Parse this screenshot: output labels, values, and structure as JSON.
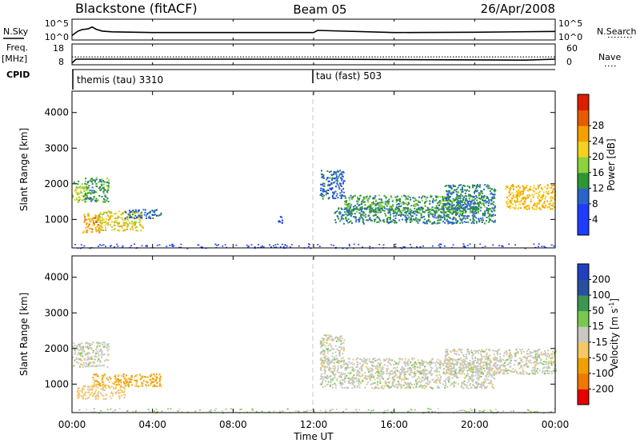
{
  "header": {
    "station": "Blackstone (fitACF)",
    "beam": "Beam 05",
    "date": "26/Apr/2008"
  },
  "params": {
    "nsky_label": "N.Sky",
    "nsky_ticks": [
      "10^5",
      "10^0"
    ],
    "nsearch_label": "N.Search",
    "nsearch_ticks": [
      "10^5",
      "10^0"
    ],
    "freq_label": "Freq.",
    "freq_unit": "[MHz]",
    "freq_ticks": [
      "18",
      "8"
    ],
    "nave_label": "Nave",
    "nave_ticks": [
      "60",
      "0"
    ],
    "cpid_label": "CPID"
  },
  "cpid": [
    {
      "name": "themis (tau) 3310",
      "start_hour": 0
    },
    {
      "name": "tau (fast) 503",
      "start_hour": 12
    }
  ],
  "axes": {
    "ylabel": "Slant Range [km]",
    "xlabel": "Time UT",
    "xticks": [
      "00:00",
      "04:00",
      "08:00",
      "12:00",
      "16:00",
      "20:00",
      "00:00"
    ]
  },
  "colors": {
    "power": [
      "#1e3cff",
      "#1e3cff",
      "#2a64c8",
      "#2e9632",
      "#8cd23c",
      "#f2d21e",
      "#f5a000",
      "#e65a00",
      "#dc1e00"
    ],
    "velocity": [
      "#e60000",
      "#f07800",
      "#f0a000",
      "#f5c864",
      "#c8c8c0",
      "#78c850",
      "#3c9650",
      "#2850a0",
      "#2040c0"
    ]
  },
  "chart_data": [
    {
      "type": "line",
      "title": "N.Sky / N.Search",
      "x_unit": "hours UT",
      "xlim": [
        0,
        24
      ],
      "series": [
        {
          "name": "N.Sky",
          "x": [
            0,
            0.3,
            0.5,
            0.8,
            1.0,
            1.2,
            1.5,
            2,
            4,
            8,
            12,
            12.2,
            16,
            20,
            24
          ],
          "values": [
            1,
            2.2,
            2.6,
            2.8,
            3.3,
            2.7,
            2.2,
            2.0,
            1.8,
            1.8,
            1.8,
            2.4,
            1.8,
            1.9,
            2.1
          ]
        }
      ]
    },
    {
      "type": "line",
      "title": "Freq. / Nave",
      "x_unit": "hours UT",
      "xlim": [
        0,
        24
      ],
      "series": [
        {
          "name": "Freq.",
          "x": [
            0,
            0.2,
            12,
            22.5,
            24
          ],
          "values": [
            8.5,
            10.5,
            10.5,
            10.0,
            10.5
          ]
        },
        {
          "name": "Nave",
          "x": [
            0,
            24
          ],
          "values": [
            22,
            22
          ]
        }
      ]
    },
    {
      "type": "heatmap",
      "title": "Power",
      "zlabel": "Power [dB]",
      "x_unit": "hours UT",
      "xlim": [
        0,
        24
      ],
      "ylim": [
        200,
        4600
      ],
      "zticks": [
        4,
        8,
        12,
        16,
        20,
        24,
        28
      ],
      "ground_scatter": {
        "x_range": [
          0,
          24
        ],
        "y_range": [
          200,
          330
        ]
      },
      "patches": [
        {
          "x": [
            0.0,
            0.8
          ],
          "y": [
            1500,
            2100
          ],
          "value": 18
        },
        {
          "x": [
            0.6,
            1.8
          ],
          "y": [
            1500,
            2200
          ],
          "value": 14
        },
        {
          "x": [
            0.5,
            1.4
          ],
          "y": [
            650,
            1200
          ],
          "value": 26
        },
        {
          "x": [
            1.2,
            3.5
          ],
          "y": [
            700,
            1250
          ],
          "value": 22
        },
        {
          "x": [
            2.6,
            4.4
          ],
          "y": [
            1050,
            1300
          ],
          "value": 10
        },
        {
          "x": [
            12.3,
            13.5
          ],
          "y": [
            1600,
            2400
          ],
          "value": 10
        },
        {
          "x": [
            13.0,
            21.0
          ],
          "y": [
            900,
            1350
          ],
          "value": 12
        },
        {
          "x": [
            13.5,
            20.5
          ],
          "y": [
            1200,
            1700
          ],
          "value": 14
        },
        {
          "x": [
            18.5,
            21.0
          ],
          "y": [
            1300,
            2000
          ],
          "value": 12
        },
        {
          "x": [
            21.5,
            24.0
          ],
          "y": [
            1300,
            2000
          ],
          "value": 24
        },
        {
          "x": [
            10.2,
            10.5
          ],
          "y": [
            900,
            1100
          ],
          "value": 8
        }
      ]
    },
    {
      "type": "heatmap",
      "title": "Velocity",
      "zlabel": "Velocity [m s^-1]",
      "x_unit": "hours UT",
      "xlim": [
        0,
        24
      ],
      "ylim": [
        200,
        4600
      ],
      "zticks": [
        -200,
        -100,
        -50,
        -15,
        15,
        50,
        100,
        200
      ],
      "ground_scatter": {
        "x_range": [
          0,
          24
        ],
        "y_range": [
          200,
          330
        ]
      },
      "patches": [
        {
          "x": [
            0.0,
            1.8
          ],
          "y": [
            1500,
            2200
          ],
          "value": 0
        },
        {
          "x": [
            1.0,
            4.4
          ],
          "y": [
            950,
            1300
          ],
          "value": -60
        },
        {
          "x": [
            0.2,
            2.6
          ],
          "y": [
            600,
            1000
          ],
          "value": -30
        },
        {
          "x": [
            12.3,
            21.0
          ],
          "y": [
            900,
            1750
          ],
          "value": 0
        },
        {
          "x": [
            18.5,
            24.0
          ],
          "y": [
            1300,
            2000
          ],
          "value": 0
        },
        {
          "x": [
            12.3,
            13.5
          ],
          "y": [
            1600,
            2400
          ],
          "value": 0
        }
      ]
    }
  ]
}
